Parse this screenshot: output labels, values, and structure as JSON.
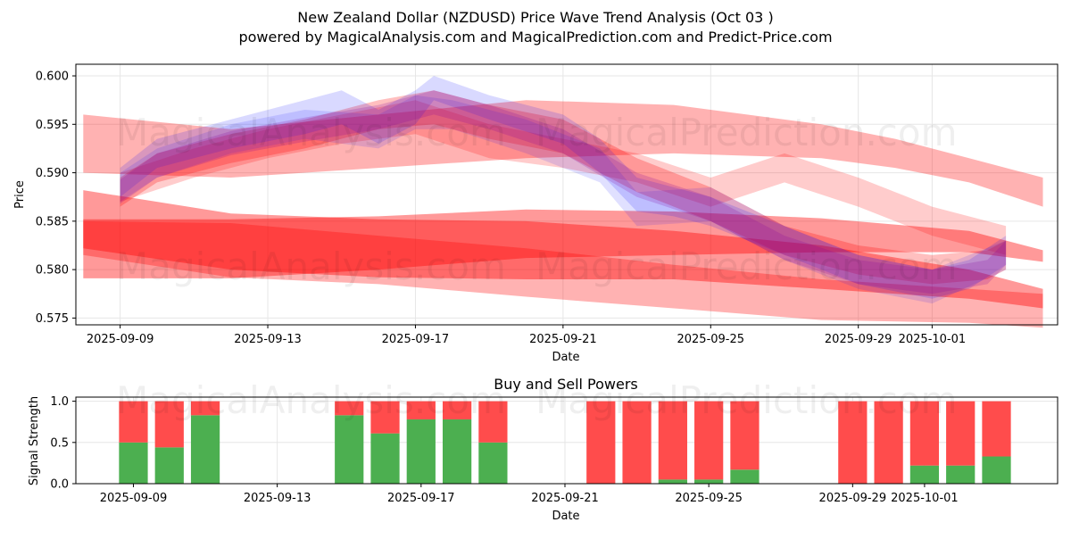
{
  "title_line1": "New Zealand Dollar (NZDUSD) Price Wave Trend Analysis (Oct 03 )",
  "title_line2": "powered by MagicalAnalysis.com and MagicalPrediction.com and Predict-Price.com",
  "watermarks": [
    "MagicalAnalysis.com",
    "MagicalPrediction.com"
  ],
  "colors": {
    "band_red": "#ff0000",
    "band_blue": "#0000ff",
    "band_purple": "#8000a0",
    "buy": "#4caf50",
    "sell": "#ff4c4c",
    "grid": "#e6e6e6"
  },
  "chart_data": [
    {
      "type": "area",
      "name": "price-wave",
      "title": "",
      "xlabel": "Date",
      "ylabel": "Price",
      "x_tick_labels": [
        "2025-09-09",
        "2025-09-13",
        "2025-09-17",
        "2025-09-21",
        "2025-09-25",
        "2025-09-29",
        "2025-10-01"
      ],
      "x_tick_days": [
        0,
        4,
        8,
        12,
        16,
        20,
        22
      ],
      "xlim_days": [
        -1.2,
        25.4
      ],
      "ylim": [
        0.5743,
        0.6012
      ],
      "y_ticks": [
        0.575,
        0.58,
        0.585,
        0.59,
        0.595,
        0.6
      ],
      "y_tick_labels": [
        "0.575",
        "0.580",
        "0.585",
        "0.590",
        "0.595",
        "0.600"
      ],
      "grid": true,
      "series": [
        {
          "name": "long-upper-band",
          "color": "red",
          "opacity": 0.3,
          "x": [
            -1,
            3,
            7,
            11,
            15,
            19,
            21,
            23,
            25
          ],
          "lower": [
            0.59,
            0.5895,
            0.5905,
            0.5915,
            0.592,
            0.5915,
            0.5905,
            0.589,
            0.5865
          ],
          "upper": [
            0.596,
            0.5945,
            0.596,
            0.5975,
            0.597,
            0.595,
            0.5935,
            0.5915,
            0.5895
          ]
        },
        {
          "name": "long-lower-band-1",
          "color": "red",
          "opacity": 0.4,
          "x": [
            -1,
            3,
            7,
            11,
            15,
            19,
            23,
            25
          ],
          "lower": [
            0.5822,
            0.58,
            0.5792,
            0.579,
            0.579,
            0.578,
            0.577,
            0.576
          ],
          "upper": [
            0.5882,
            0.5858,
            0.5852,
            0.585,
            0.584,
            0.5825,
            0.58,
            0.578
          ]
        },
        {
          "name": "long-lower-band-2",
          "color": "red",
          "opacity": 0.4,
          "x": [
            -1,
            3,
            7,
            11,
            15,
            19,
            23,
            25
          ],
          "lower": [
            0.5791,
            0.5791,
            0.58,
            0.5812,
            0.5815,
            0.5818,
            0.5818,
            0.5808
          ],
          "upper": [
            0.5852,
            0.5852,
            0.5855,
            0.5862,
            0.586,
            0.5853,
            0.584,
            0.582
          ]
        },
        {
          "name": "long-lower-band-3",
          "color": "red",
          "opacity": 0.3,
          "x": [
            -1,
            3,
            7,
            11,
            15,
            19,
            23,
            25
          ],
          "lower": [
            0.5815,
            0.5792,
            0.5785,
            0.5772,
            0.576,
            0.5748,
            0.5745,
            0.574
          ],
          "upper": [
            0.585,
            0.5848,
            0.5835,
            0.5822,
            0.5805,
            0.579,
            0.578,
            0.5775
          ]
        },
        {
          "name": "wave-red-1",
          "color": "red",
          "opacity": 0.25,
          "x": [
            0,
            1,
            3,
            5,
            7,
            8.5,
            10,
            12,
            14,
            16,
            18,
            20,
            22,
            23.5,
            24
          ],
          "lower": [
            0.5865,
            0.589,
            0.591,
            0.5925,
            0.5945,
            0.595,
            0.5935,
            0.592,
            0.588,
            0.585,
            0.5815,
            0.5795,
            0.5785,
            0.579,
            0.58
          ],
          "upper": [
            0.5895,
            0.592,
            0.594,
            0.5955,
            0.5975,
            0.5985,
            0.597,
            0.5955,
            0.5915,
            0.5885,
            0.5845,
            0.5825,
            0.5815,
            0.582,
            0.583
          ]
        },
        {
          "name": "wave-red-2",
          "color": "red",
          "opacity": 0.2,
          "x": [
            0,
            2,
            4,
            6,
            8,
            10,
            12,
            14,
            16,
            18,
            20,
            22,
            24
          ],
          "lower": [
            0.587,
            0.5895,
            0.5915,
            0.593,
            0.594,
            0.5915,
            0.5905,
            0.589,
            0.5865,
            0.589,
            0.5865,
            0.5835,
            0.5815
          ],
          "upper": [
            0.59,
            0.5925,
            0.5945,
            0.596,
            0.5975,
            0.595,
            0.5935,
            0.592,
            0.5895,
            0.592,
            0.5895,
            0.5865,
            0.5845
          ]
        },
        {
          "name": "wave-blue-1",
          "color": "blue",
          "opacity": 0.15,
          "x": [
            0,
            1,
            3,
            5,
            6,
            7,
            8,
            8.5,
            10,
            12,
            13,
            14,
            15,
            16,
            18,
            20,
            22,
            23,
            24
          ],
          "lower": [
            0.5875,
            0.5905,
            0.5925,
            0.594,
            0.595,
            0.593,
            0.595,
            0.5975,
            0.5955,
            0.593,
            0.59,
            0.586,
            0.5855,
            0.5845,
            0.5815,
            0.5785,
            0.577,
            0.578,
            0.5805
          ],
          "upper": [
            0.5905,
            0.5935,
            0.5955,
            0.5975,
            0.5985,
            0.5965,
            0.5985,
            0.6,
            0.598,
            0.596,
            0.5935,
            0.5895,
            0.5885,
            0.5875,
            0.5845,
            0.5815,
            0.58,
            0.581,
            0.5835
          ]
        },
        {
          "name": "wave-blue-2",
          "color": "blue",
          "opacity": 0.12,
          "x": [
            0,
            1,
            3,
            5,
            7,
            8,
            9,
            11,
            13,
            14,
            16,
            18,
            20,
            22,
            24
          ],
          "lower": [
            0.587,
            0.5895,
            0.592,
            0.5935,
            0.5925,
            0.5945,
            0.5945,
            0.592,
            0.589,
            0.5845,
            0.585,
            0.581,
            0.578,
            0.5765,
            0.58
          ],
          "upper": [
            0.59,
            0.5925,
            0.595,
            0.5965,
            0.596,
            0.598,
            0.5975,
            0.5955,
            0.5925,
            0.588,
            0.5885,
            0.5845,
            0.5815,
            0.58,
            0.583
          ]
        },
        {
          "name": "wave-purple",
          "color": "purple",
          "opacity": 0.2,
          "x": [
            0,
            1,
            3,
            5,
            7,
            8.5,
            10,
            12,
            14,
            16,
            18,
            20,
            22,
            23.5,
            24
          ],
          "lower": [
            0.5868,
            0.5895,
            0.5918,
            0.5932,
            0.5945,
            0.596,
            0.5945,
            0.592,
            0.5875,
            0.585,
            0.581,
            0.5785,
            0.5775,
            0.5785,
            0.5805
          ],
          "upper": [
            0.5893,
            0.592,
            0.5943,
            0.5957,
            0.597,
            0.5985,
            0.597,
            0.5945,
            0.59,
            0.5875,
            0.5835,
            0.581,
            0.58,
            0.581,
            0.583
          ]
        }
      ]
    },
    {
      "type": "bar",
      "name": "buy-sell-powers",
      "title": "Buy and Sell Powers",
      "xlabel": "Date",
      "ylabel": "Signal Strength",
      "x_tick_labels": [
        "2025-09-09",
        "2025-09-13",
        "2025-09-17",
        "2025-09-21",
        "2025-09-25",
        "2025-09-29",
        "2025-10-01"
      ],
      "x_tick_days": [
        0,
        4,
        8,
        12,
        16,
        20,
        22
      ],
      "xlim_days": [
        -1.6,
        25.7
      ],
      "ylim": [
        0,
        1.05
      ],
      "y_ticks": [
        0,
        0.5,
        1
      ],
      "y_tick_labels": [
        "0.0",
        "0.5",
        "1.0"
      ],
      "grid": true,
      "categories": [
        "2025-09-09",
        "2025-09-10",
        "2025-09-11",
        "2025-09-15",
        "2025-09-16",
        "2025-09-17",
        "2025-09-18",
        "2025-09-19",
        "2025-09-22",
        "2025-09-23",
        "2025-09-24",
        "2025-09-25",
        "2025-09-26",
        "2025-09-29",
        "2025-09-30",
        "2025-10-01",
        "2025-10-02",
        "2025-10-03"
      ],
      "day_index": [
        0,
        1,
        2,
        6,
        7,
        8,
        9,
        10,
        13,
        14,
        15,
        16,
        17,
        20,
        21,
        22,
        23,
        24
      ],
      "series": [
        {
          "name": "Buy",
          "values": [
            0.5,
            0.44,
            0.83,
            0.83,
            0.61,
            0.78,
            0.78,
            0.5,
            0,
            0,
            0.05,
            0.05,
            0.17,
            0,
            0,
            0.22,
            0.22,
            0.33
          ]
        },
        {
          "name": "Sell",
          "values": [
            0.5,
            0.56,
            0.17,
            0.17,
            0.39,
            0.22,
            0.22,
            0.5,
            1,
            1,
            0.95,
            0.95,
            0.83,
            1,
            1,
            0.78,
            0.78,
            0.67
          ]
        }
      ]
    }
  ]
}
